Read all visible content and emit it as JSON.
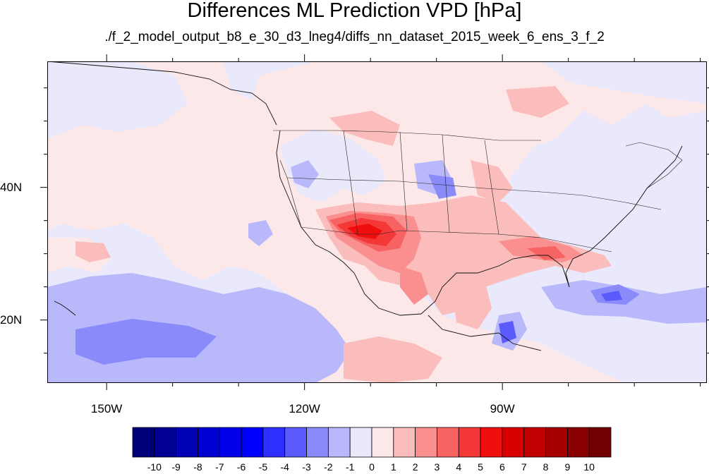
{
  "title": "Differences ML Prediction VPD [hPa]",
  "subtitle": "./f_2_model_output_b8_e_30_d3_lneg4/diffs_nn_dataset_2015_week_6_ens_3_f_2",
  "axes": {
    "lon_ticks": [
      {
        "value": -150,
        "label": "150W"
      },
      {
        "value": -120,
        "label": "120W"
      },
      {
        "value": -90,
        "label": "90W"
      }
    ],
    "lat_ticks": [
      {
        "value": 40,
        "label": "40N"
      },
      {
        "value": 20,
        "label": "20N"
      }
    ],
    "lon_range": [
      -159,
      -59
    ],
    "lat_range": [
      10.5,
      59
    ]
  },
  "colorbar": {
    "levels": [
      "-10",
      "-9",
      "-8",
      "-7",
      "-6",
      "-5",
      "-4",
      "-3",
      "-2",
      "-1",
      "0",
      "1",
      "2",
      "3",
      "4",
      "5",
      "6",
      "7",
      "8",
      "9",
      "10"
    ],
    "colors": [
      "#00007a",
      "#000095",
      "#0000b5",
      "#0000d2",
      "#0000ea",
      "#0000ff",
      "#2e2efe",
      "#5a5afd",
      "#8a8afb",
      "#b8b8fa",
      "#e9e9fb",
      "#fce8e8",
      "#fbbcbc",
      "#f98f8f",
      "#f76363",
      "#f43838",
      "#f00e0e",
      "#d80000",
      "#c00000",
      "#a40000",
      "#8a0000",
      "#730000"
    ]
  },
  "fill_colors": {
    "neutral_neg": "#e9e9fb",
    "neutral_pos": "#fce8e8",
    "pos1": "#fbbcbc",
    "pos2": "#f98f8f",
    "pos3": "#f76363",
    "pos4": "#f43838",
    "pos5": "#f00e0e",
    "neg1": "#b8b8fa",
    "neg2": "#8a8afb",
    "neg3": "#5a5afd"
  }
}
